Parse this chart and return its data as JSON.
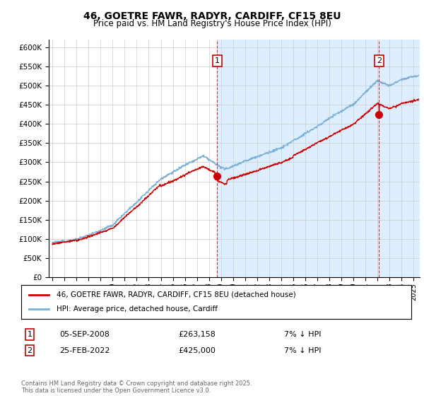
{
  "title": "46, GOETRE FAWR, RADYR, CARDIFF, CF15 8EU",
  "subtitle": "Price paid vs. HM Land Registry's House Price Index (HPI)",
  "ylim": [
    0,
    620000
  ],
  "yticks": [
    0,
    50000,
    100000,
    150000,
    200000,
    250000,
    300000,
    350000,
    400000,
    450000,
    500000,
    550000,
    600000
  ],
  "ytick_labels": [
    "£0",
    "£50K",
    "£100K",
    "£150K",
    "£200K",
    "£250K",
    "£300K",
    "£350K",
    "£400K",
    "£450K",
    "£500K",
    "£550K",
    "£600K"
  ],
  "xlim_start": 1994.7,
  "xlim_end": 2025.5,
  "price_paid_color": "#cc0000",
  "hpi_color": "#7ab0d4",
  "hpi_bg_color": "#ddeeff",
  "marker1_date": 2008.68,
  "marker1_price": 263158,
  "marker1_text": "05-SEP-2008",
  "marker1_amount": "£263,158",
  "marker1_hpi": "7% ↓ HPI",
  "marker2_date": 2022.12,
  "marker2_price": 425000,
  "marker2_text": "25-FEB-2022",
  "marker2_amount": "£425,000",
  "marker2_hpi": "7% ↓ HPI",
  "legend_label1": "46, GOETRE FAWR, RADYR, CARDIFF, CF15 8EU (detached house)",
  "legend_label2": "HPI: Average price, detached house, Cardiff",
  "footnote": "Contains HM Land Registry data © Crown copyright and database right 2025.\nThis data is licensed under the Open Government Licence v3.0.",
  "background_color": "#ffffff",
  "grid_color": "#cccccc"
}
